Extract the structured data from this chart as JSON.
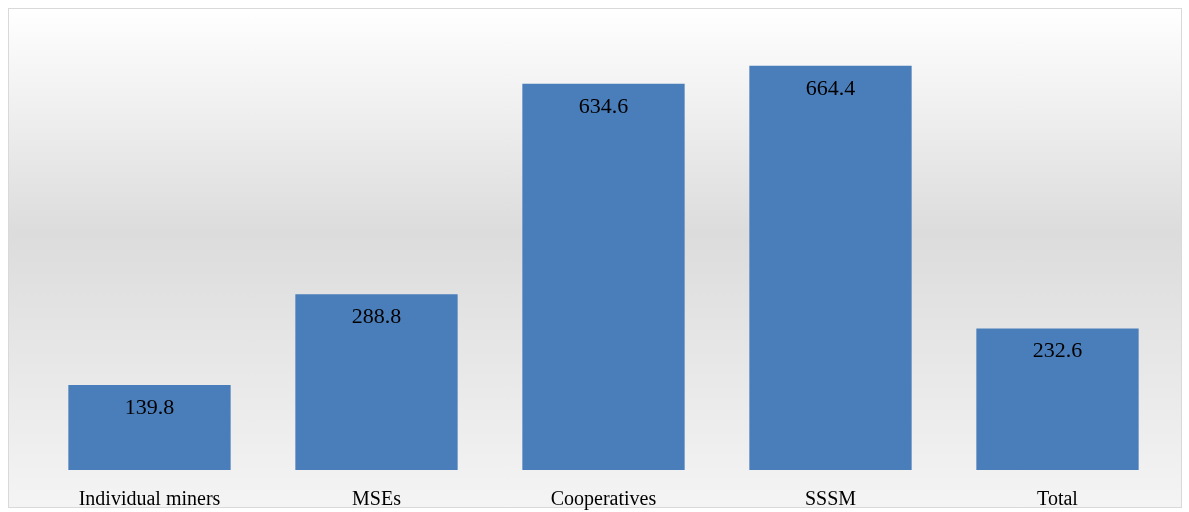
{
  "chart_data": {
    "type": "bar",
    "categories": [
      "Individual miners",
      "MSEs",
      "Cooperatives",
      "SSSM",
      "Total"
    ],
    "values": [
      139.8,
      288.8,
      634.6,
      664.4,
      232.6
    ],
    "color": "#4a7ebb",
    "data_labels": true,
    "grid": false
  }
}
